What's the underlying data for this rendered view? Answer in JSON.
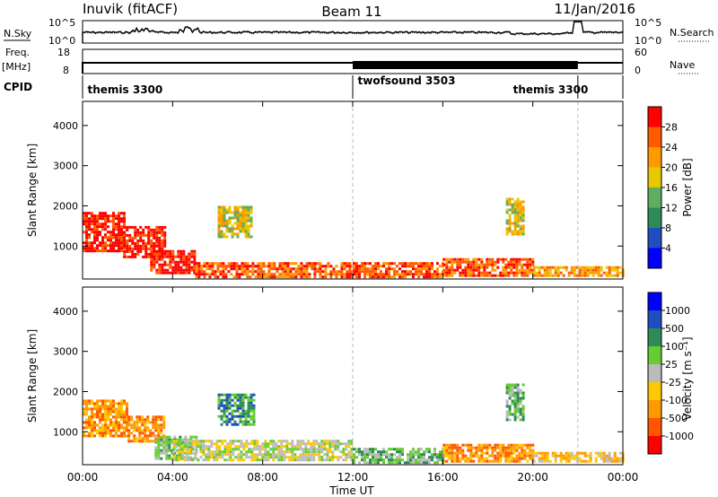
{
  "header": {
    "station": "Inuvik (fitACF)",
    "beam": "Beam 11",
    "date": "11/Jan/2016"
  },
  "sky_strip": {
    "left_label": "N.Sky",
    "left_top": "10^5",
    "left_bottom": "10^0",
    "right_top": "10^5",
    "right_bottom": "10^0",
    "right_label": "N.Search"
  },
  "freq_strip": {
    "left_label_1": "Freq.",
    "left_label_2": "[MHz]",
    "left_top": "18",
    "left_bottom": "8",
    "right_top": "60",
    "right_bottom": "0",
    "right_label": "Nave"
  },
  "cpid": {
    "label": "CPID",
    "segments": [
      {
        "name": "themis 3300",
        "start_h": 0,
        "end_h": 12
      },
      {
        "name": "twofsound 3503",
        "start_h": 12,
        "end_h": 22
      },
      {
        "name": "themis 3300",
        "start_h": 22,
        "end_h": 24
      }
    ],
    "label_positions_h": [
      0.1,
      12.1,
      19.0
    ]
  },
  "colors": {
    "power": [
      "#0000ff",
      "#1f4ec0",
      "#2e8b57",
      "#5fae5f",
      "#e8c800",
      "#ff9900",
      "#ff5a00",
      "#ff0000"
    ],
    "velocity": [
      "#ff0000",
      "#ff5500",
      "#ff9900",
      "#ffc800",
      "#bbbbbb",
      "#66cc33",
      "#2e8b57",
      "#1f4ec0",
      "#0000ff"
    ]
  },
  "chart_data": [
    {
      "type": "heatmap",
      "title": "Power",
      "xlabel": "",
      "ylabel": "Slant Range [km]",
      "x_ticks": [
        "00:00",
        "04:00",
        "08:00",
        "12:00",
        "16:00",
        "20:00",
        "00:00"
      ],
      "xlim_hours": [
        0,
        24
      ],
      "y_ticks": [
        1000,
        2000,
        3000,
        4000
      ],
      "ylim": [
        180,
        4600
      ],
      "colorbar_label": "Power [dB]",
      "colorbar_ticks": [
        "4",
        "8",
        "12",
        "16",
        "20",
        "24",
        "28"
      ],
      "echo_regions": [
        {
          "t0": 0.0,
          "t1": 1.8,
          "r0": 850,
          "r1": 1850,
          "level": 7
        },
        {
          "t0": 1.8,
          "t1": 3.6,
          "r0": 750,
          "r1": 1500,
          "level": 7
        },
        {
          "t0": 3.0,
          "t1": 5.0,
          "r0": 300,
          "r1": 900,
          "level": 7
        },
        {
          "t0": 5.0,
          "t1": 12.0,
          "r0": 250,
          "r1": 600,
          "level": 6
        },
        {
          "t0": 12.0,
          "t1": 16.0,
          "r0": 250,
          "r1": 600,
          "level": 6
        },
        {
          "t0": 16.0,
          "t1": 20.0,
          "r0": 280,
          "r1": 700,
          "level": 6
        },
        {
          "t0": 20.0,
          "t1": 24.0,
          "r0": 250,
          "r1": 500,
          "level": 5
        },
        {
          "t0": 6.0,
          "t1": 7.5,
          "r0": 1200,
          "r1": 2000,
          "level": 4
        },
        {
          "t0": 18.8,
          "t1": 19.6,
          "r0": 1300,
          "r1": 2200,
          "level": 4
        }
      ]
    },
    {
      "type": "heatmap",
      "title": "Velocity",
      "xlabel": "Time UT",
      "ylabel": "Slant Range [km]",
      "x_ticks": [
        "00:00",
        "04:00",
        "08:00",
        "12:00",
        "16:00",
        "20:00",
        "00:00"
      ],
      "xlim_hours": [
        0,
        24
      ],
      "y_ticks": [
        1000,
        2000,
        3000,
        4000
      ],
      "ylim": [
        180,
        4600
      ],
      "colorbar_label": "Velocity [m s⁻¹]",
      "colorbar_ticks": [
        "1000",
        "500",
        "100",
        "25",
        "-25",
        "-100",
        "-500",
        "-1000"
      ],
      "echo_regions": [
        {
          "t0": 0.0,
          "t1": 2.0,
          "r0": 900,
          "r1": 1800,
          "level": 2
        },
        {
          "t0": 2.0,
          "t1": 3.6,
          "r0": 750,
          "r1": 1400,
          "level": 2
        },
        {
          "t0": 3.2,
          "t1": 5.0,
          "r0": 300,
          "r1": 900,
          "level": 5
        },
        {
          "t0": 4.0,
          "t1": 12.0,
          "r0": 280,
          "r1": 800,
          "level": 4
        },
        {
          "t0": 12.0,
          "t1": 16.0,
          "r0": 250,
          "r1": 600,
          "level": 5
        },
        {
          "t0": 16.0,
          "t1": 20.0,
          "r0": 280,
          "r1": 700,
          "level": 2
        },
        {
          "t0": 20.0,
          "t1": 24.0,
          "r0": 250,
          "r1": 500,
          "level": 3
        },
        {
          "t0": 6.0,
          "t1": 7.6,
          "r0": 1200,
          "r1": 1950,
          "level": 6
        },
        {
          "t0": 18.8,
          "t1": 19.6,
          "r0": 1300,
          "r1": 2200,
          "level": 5
        }
      ]
    }
  ]
}
